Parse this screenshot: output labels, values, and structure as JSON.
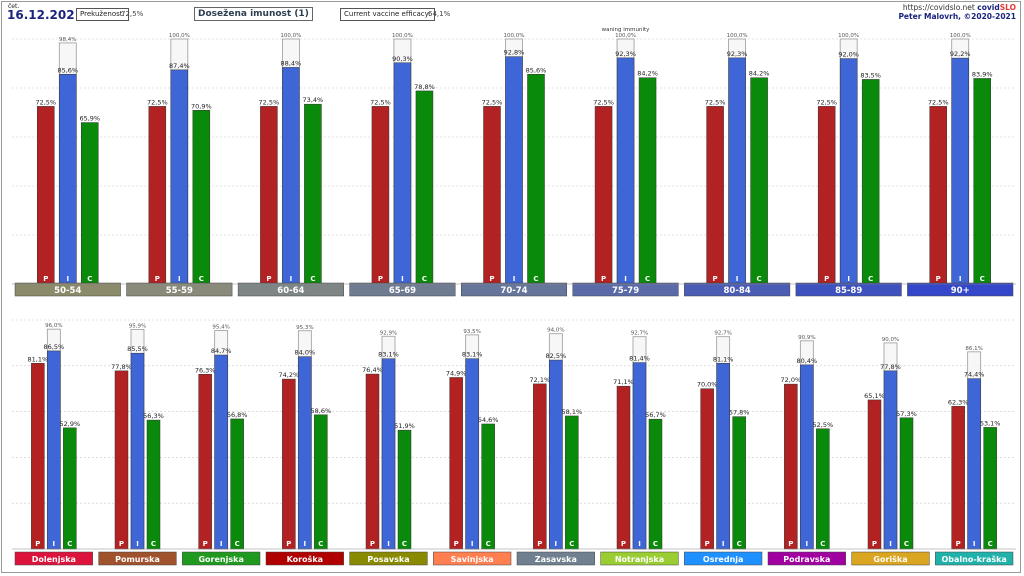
{
  "header": {
    "date_small": "čet.",
    "date": "16.12.2021",
    "prekuzenost_label": "Prekuženost:",
    "prekuzenost_value": "72,5%",
    "title": "Dosežena imunost (1)",
    "efficacy_label": "Current vaccine efficacy:",
    "efficacy_value": "64,1%",
    "site": "https://covidslo.net",
    "brand_prefix": "covid",
    "brand_suffix": "SLO",
    "author": "Peter Malovrh, ©2020-2021"
  },
  "colors": {
    "P": "#b22222",
    "I": "#3f66d6",
    "C": "#0a8a0a"
  },
  "chart_data": [
    {
      "type": "bar",
      "title": "",
      "ylim": [
        0,
        100
      ],
      "annotation": "waning immunity",
      "series_letters": [
        "P",
        "I",
        "C"
      ],
      "categories": [
        "50-54",
        "55-59",
        "60-64",
        "65-69",
        "70-74",
        "75-79",
        "80-84",
        "85-89",
        "90+"
      ],
      "category_colors": [
        "#8b8b6b",
        "#8a8a7a",
        "#7e8585",
        "#6f7b90",
        "#66759a",
        "#5a6aa8",
        "#4a5cb4",
        "#3d51bf",
        "#3347c8"
      ],
      "series": [
        {
          "values": [
            72.5,
            72.5,
            72.5,
            72.5,
            72.5,
            72.5,
            72.5,
            72.5,
            72.5
          ],
          "labels": [
            "72,5%",
            "72,5%",
            "72,5%",
            "72,5%",
            "72,5%",
            "72,5%",
            "72,5%",
            "72,5%",
            "72,5%"
          ]
        },
        {
          "values": [
            85.6,
            87.4,
            88.4,
            90.3,
            92.8,
            92.3,
            92.3,
            92.0,
            92.2
          ],
          "labels": [
            "85,6%",
            "87,4%",
            "88,4%",
            "90,3%",
            "92,8%",
            "92,3%",
            "92,3%",
            "92,0%",
            "92,2%"
          ]
        },
        {
          "values": [
            65.9,
            70.9,
            73.4,
            78.8,
            85.6,
            84.2,
            84.2,
            83.5,
            83.9
          ],
          "labels": [
            "65,9%",
            "70,9%",
            "73,4%",
            "78,8%",
            "85,6%",
            "84,2%",
            "84,2%",
            "83,5%",
            "83,9%"
          ]
        }
      ],
      "waning": {
        "values": [
          98.4,
          100.0,
          100.0,
          100.0,
          100.0,
          100.0,
          100.0,
          100.0,
          100.0
        ],
        "labels": [
          "98,4%",
          "100,0%",
          "100,0%",
          "100,0%",
          "100,0%",
          "100,0%",
          "100,0%",
          "100,0%",
          "100,0%"
        ]
      }
    },
    {
      "type": "bar",
      "title": "",
      "ylim": [
        0,
        100
      ],
      "series_letters": [
        "P",
        "I",
        "C"
      ],
      "categories": [
        "Dolenjska",
        "Pomurska",
        "Gorenjska",
        "Koroška",
        "Posavska",
        "Savinjska",
        "Zasavska",
        "Notranjska",
        "Osrednja",
        "Podravska",
        "Goriška",
        "Obalno-kraška"
      ],
      "category_colors": [
        "#dc143c",
        "#a0522d",
        "#1f9a1f",
        "#b00000",
        "#8a8a00",
        "#ff7f50",
        "#708090",
        "#9acd32",
        "#1e90ff",
        "#a000a0",
        "#daa520",
        "#20b2aa"
      ],
      "series": [
        {
          "values": [
            81.1,
            77.8,
            76.3,
            74.2,
            76.4,
            74.9,
            72.1,
            71.1,
            70.0,
            72.0,
            65.1,
            62.3
          ],
          "labels": [
            "81,1%",
            "77,8%",
            "76,3%",
            "74,2%",
            "76,4%",
            "74,9%",
            "72,1%",
            "71,1%",
            "70,0%",
            "72,0%",
            "65,1%",
            "62,3%"
          ]
        },
        {
          "values": [
            86.5,
            85.5,
            84.7,
            84.0,
            83.1,
            83.1,
            82.5,
            81.4,
            81.1,
            80.4,
            77.8,
            74.4
          ],
          "labels": [
            "86,5%",
            "85,5%",
            "84,7%",
            "84,0%",
            "83,1%",
            "83,1%",
            "82,5%",
            "81,4%",
            "81,1%",
            "80,4%",
            "77,8%",
            "74,4%"
          ]
        },
        {
          "values": [
            52.9,
            56.3,
            56.8,
            58.6,
            51.9,
            54.6,
            58.1,
            56.7,
            57.8,
            52.5,
            57.3,
            53.1
          ],
          "labels": [
            "52,9%",
            "56,3%",
            "56,8%",
            "58,6%",
            "51,9%",
            "54,6%",
            "58,1%",
            "56,7%",
            "57,8%",
            "52,5%",
            "57,3%",
            "53,1%"
          ]
        }
      ],
      "waning": {
        "values": [
          96.0,
          95.9,
          95.4,
          95.3,
          92.9,
          93.5,
          94.0,
          92.7,
          92.7,
          90.9,
          90.0,
          86.1
        ],
        "labels": [
          "96,0%",
          "95,9%",
          "95,4%",
          "95,3%",
          "92,9%",
          "93,5%",
          "94,0%",
          "92,7%",
          "92,7%",
          "90,9%",
          "90,0%",
          "86,1%"
        ]
      }
    }
  ]
}
